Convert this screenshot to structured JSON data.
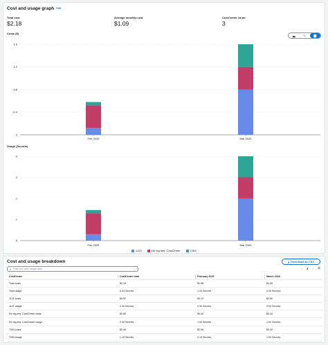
{
  "graph": {
    "title": "Cost and usage graph",
    "info": "Info",
    "metrics": [
      {
        "label": "Total cost",
        "value": "$2.18"
      },
      {
        "label": "Average monthly cost",
        "value": "$1.09"
      },
      {
        "label": "CostCenter count",
        "value": "3"
      }
    ],
    "chart_types": [
      "bar-icon",
      "line-icon",
      "stacked-bar-icon"
    ],
    "selected_chart_type": "stacked-bar-icon",
    "legend": [
      {
        "name": "1121",
        "color": "#688ae8"
      },
      {
        "name": "No tag key: CostCenter",
        "color": "#c33d69"
      },
      {
        "name": "7263",
        "color": "#2ea597"
      }
    ]
  },
  "chart_data": [
    {
      "type": "bar",
      "stacked": true,
      "title": "Costs ($)",
      "categories": [
        "Feb 2025",
        "Mar 2025"
      ],
      "y_ticks": [
        "0",
        "0.4",
        "0.8",
        "1.2",
        "1.6"
      ],
      "ylim": [
        0,
        1.6
      ],
      "grid": true,
      "legend_position": "bottom",
      "series": [
        {
          "name": "1121",
          "color": "#688ae8",
          "values": [
            0.12,
            0.8
          ]
        },
        {
          "name": "No tag key: CostCenter",
          "color": "#c33d69",
          "values": [
            0.4,
            0.4
          ]
        },
        {
          "name": "7263",
          "color": "#2ea597",
          "values": [
            0.06,
            0.4
          ]
        }
      ]
    },
    {
      "type": "bar",
      "stacked": true,
      "title": "Usage (Secrets)",
      "categories": [
        "Feb 2025",
        "Mar 2025"
      ],
      "y_ticks": [
        "0",
        "1",
        "2",
        "3",
        "4"
      ],
      "ylim": [
        0,
        4
      ],
      "grid": true,
      "legend_position": "bottom",
      "series": [
        {
          "name": "1121",
          "color": "#688ae8",
          "values": [
            0.3,
            2.0
          ]
        },
        {
          "name": "No tag key: CostCenter",
          "color": "#c33d69",
          "values": [
            1.0,
            1.0
          ]
        },
        {
          "name": "7263",
          "color": "#2ea597",
          "values": [
            0.15,
            1.0
          ]
        }
      ]
    }
  ],
  "breakdown": {
    "title": "Cost and usage breakdown",
    "download_label": "Download as CSV",
    "search_placeholder": "Find cost and usage data",
    "current_page": "1",
    "columns": [
      "CostCenter",
      "CostCenter total",
      "February 2025",
      "March 2025"
    ],
    "rows": [
      [
        "Total costs",
        "$2.18",
        "$0.58",
        "$1.60"
      ],
      [
        "Total usage",
        "5.44 Secrets",
        "1.44 Secrets",
        "4.00 Secrets"
      ],
      [
        "1121 costs",
        "$0.92",
        "$0.12",
        "$0.80"
      ],
      [
        "1121 usage",
        "2.30 Secrets",
        "0.30 Secrets",
        "2.00 Secrets"
      ],
      [
        "No tag key: CostCenter costs",
        "$0.80",
        "$0.40",
        "$0.40"
      ],
      [
        "No tag key: CostCenter usage",
        "2.00 Secrets",
        "1.00 Secrets",
        "1.00 Secrets"
      ],
      [
        "7263 costs",
        "$0.46",
        "$0.06",
        "$0.40"
      ],
      [
        "7263 usage",
        "1.15 Secrets",
        "0.15 Secrets",
        "1.00 Secrets"
      ]
    ]
  }
}
